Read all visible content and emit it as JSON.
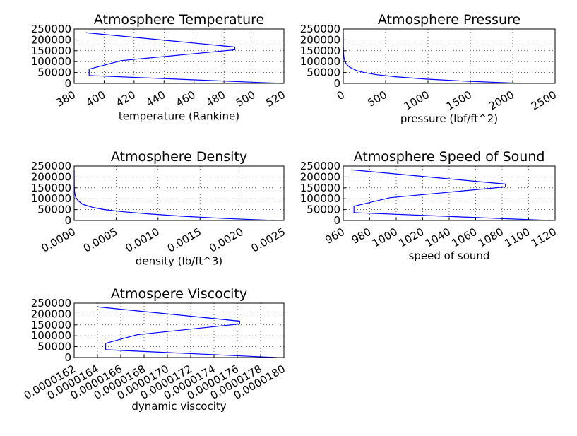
{
  "theme": {
    "line_color": "#0000ff"
  },
  "chart_data": [
    {
      "type": "line",
      "title": "Atmosphere Temperature",
      "xlabel": "temperature (Rankine)",
      "ylabel": "",
      "xlim": [
        380,
        520
      ],
      "ylim": [
        0,
        250000
      ],
      "xticks": [
        "380",
        "400",
        "420",
        "440",
        "460",
        "480",
        "500",
        "520"
      ],
      "yticks": [
        "0",
        "50000",
        "100000",
        "150000",
        "200000",
        "250000"
      ],
      "xtick_rotation": 30,
      "grid": true,
      "series": [
        {
          "x": [
            518.7,
            390,
            390,
            411.6,
            487.2,
            487.2,
            388
          ],
          "y": [
            0,
            36000,
            65600,
            104900,
            154200,
            167300,
            232900
          ]
        }
      ]
    },
    {
      "type": "line",
      "title": "Atmosphere Pressure",
      "xlabel": "pressure (lbf/ft^2)",
      "ylabel": "",
      "xlim": [
        0,
        2500
      ],
      "ylim": [
        0,
        250000
      ],
      "xticks": [
        "0",
        "500",
        "1000",
        "1500",
        "2000",
        "2500"
      ],
      "yticks": [
        "0",
        "50000",
        "100000",
        "150000",
        "200000",
        "250000"
      ],
      "xtick_rotation": 30,
      "grid": true,
      "series": [
        {
          "x": [
            2116,
            1455,
            973,
            629,
            393,
            243,
            151,
            73,
            35,
            17,
            8,
            4,
            2,
            1,
            0.5,
            0.1
          ],
          "y": [
            0,
            10000,
            20000,
            30000,
            40000,
            50000,
            60000,
            75000,
            90000,
            105000,
            120000,
            135000,
            150000,
            170000,
            190000,
            230000
          ]
        }
      ]
    },
    {
      "type": "line",
      "title": "Atmosphere Density",
      "xlabel": "density (lb/ft^3)",
      "ylabel": "",
      "xlim": [
        0,
        0.0025
      ],
      "ylim": [
        0,
        250000
      ],
      "xticks": [
        "0.0000",
        "0.0005",
        "0.0010",
        "0.0015",
        "0.0020",
        "0.0025"
      ],
      "yticks": [
        "0",
        "50000",
        "100000",
        "150000",
        "200000",
        "250000"
      ],
      "xtick_rotation": 30,
      "grid": true,
      "series": [
        {
          "x": [
            0.00238,
            0.00176,
            0.00127,
            0.00089,
            0.00059,
            0.00036,
            0.00022,
            0.0001,
            5e-05,
            2e-05,
            1e-05,
            4e-06,
            2e-06,
            1e-06,
            4e-07
          ],
          "y": [
            0,
            10000,
            20000,
            30000,
            40000,
            50000,
            60000,
            75000,
            90000,
            105000,
            120000,
            135000,
            150000,
            170000,
            230000
          ]
        }
      ]
    },
    {
      "type": "line",
      "title": "Atmosphere Speed of Sound",
      "xlabel": "speed of sound",
      "ylabel": "",
      "xlim": [
        960,
        1120
      ],
      "ylim": [
        0,
        250000
      ],
      "xticks": [
        "960",
        "980",
        "1000",
        "1020",
        "1040",
        "1060",
        "1080",
        "1100",
        "1120"
      ],
      "yticks": [
        "0",
        "50000",
        "100000",
        "150000",
        "200000",
        "250000"
      ],
      "xtick_rotation": 30,
      "grid": true,
      "series": [
        {
          "x": [
            1116.4,
            968.1,
            968.1,
            995.5,
            1082.5,
            1082.5,
            966
          ],
          "y": [
            0,
            36000,
            65600,
            104900,
            154200,
            167300,
            232900
          ]
        }
      ]
    },
    {
      "type": "line",
      "title": "Atmospere Viscocity",
      "xlabel": "dynamic viscocity",
      "ylabel": "",
      "xlim": [
        1.62e-05,
        1.8e-05
      ],
      "ylim": [
        0,
        250000
      ],
      "xticks": [
        "0.0000162",
        "0.0000164",
        "0.0000166",
        "0.0000168",
        "0.0000170",
        "0.0000172",
        "0.0000174",
        "0.0000176",
        "0.0000178",
        "0.0000180"
      ],
      "yticks": [
        "0",
        "50000",
        "100000",
        "150000",
        "200000",
        "250000"
      ],
      "xtick_rotation": 30,
      "grid": true,
      "series": [
        {
          "x": [
            1.794e-05,
            1.647e-05,
            1.647e-05,
            1.674e-05,
            1.762e-05,
            1.762e-05,
            1.64e-05
          ],
          "y": [
            0,
            36000,
            65600,
            104900,
            154200,
            167300,
            232900
          ]
        }
      ]
    }
  ]
}
